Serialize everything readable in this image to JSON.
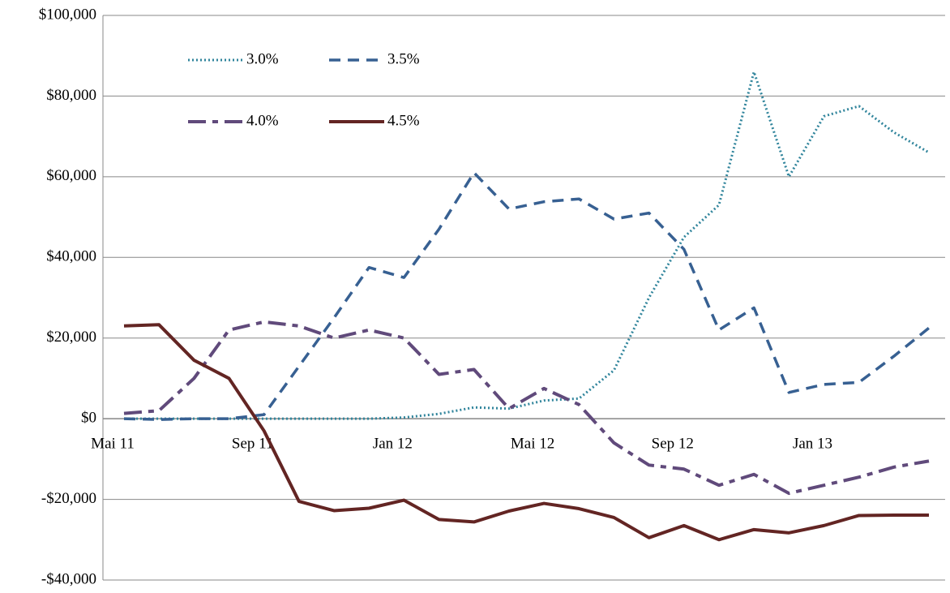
{
  "chart_data": {
    "type": "line",
    "categories": [
      "Mai 11",
      null,
      null,
      null,
      "Sep 11",
      null,
      null,
      null,
      "Jan 12",
      null,
      null,
      null,
      "Mai 12",
      null,
      null,
      null,
      "Sep 12",
      null,
      null,
      null,
      "Jan 13",
      null,
      null,
      null
    ],
    "series": [
      {
        "name": "3.0%",
        "color": "#31859c",
        "style": "dotted",
        "values": [
          0,
          0,
          0,
          0,
          0,
          0,
          0,
          0,
          300,
          1200,
          2800,
          2500,
          4500,
          5000,
          12000,
          30000,
          45000,
          53000,
          86000,
          60000,
          75000,
          77500,
          71000,
          66000
        ]
      },
      {
        "name": "3.5%",
        "color": "#376092",
        "style": "dashed",
        "values": [
          0,
          -200,
          0,
          0,
          1000,
          13000,
          25000,
          37500,
          35000,
          47000,
          61000,
          52000,
          53800,
          54500,
          49500,
          51000,
          42000,
          22000,
          27500,
          6500,
          8500,
          9000,
          15500,
          22500
        ]
      },
      {
        "name": "4.0%",
        "color": "#604a7b",
        "style": "longdash",
        "values": [
          1300,
          2000,
          10000,
          22000,
          24000,
          23000,
          20000,
          22000,
          20000,
          11000,
          12200,
          2500,
          7500,
          3500,
          -6000,
          -11500,
          -12500,
          -16500,
          -13800,
          -18500,
          -16500,
          -14500,
          -12000,
          -10500
        ]
      },
      {
        "name": "4.5%",
        "color": "#632523",
        "style": "solid",
        "values": [
          23000,
          23300,
          14500,
          10000,
          -3000,
          -20500,
          -22800,
          -22200,
          -20200,
          -25000,
          -25600,
          -22900,
          -21000,
          -22300,
          -24500,
          -29500,
          -26500,
          -30000,
          -27500,
          -28300,
          -26500,
          -24000,
          -23900,
          -23900
        ]
      }
    ],
    "ylim": [
      -40000,
      100000
    ],
    "yticks": [
      {
        "value": -40000,
        "label": "-$40,000"
      },
      {
        "value": -20000,
        "label": "-$20,000"
      },
      {
        "value": 0,
        "label": "$0"
      },
      {
        "value": 20000,
        "label": "$20,000"
      },
      {
        "value": 40000,
        "label": "$40,000"
      },
      {
        "value": 60000,
        "label": "$60,000"
      },
      {
        "value": 80000,
        "label": "$80,000"
      },
      {
        "value": 100000,
        "label": "$100,000"
      }
    ],
    "grid": true
  }
}
